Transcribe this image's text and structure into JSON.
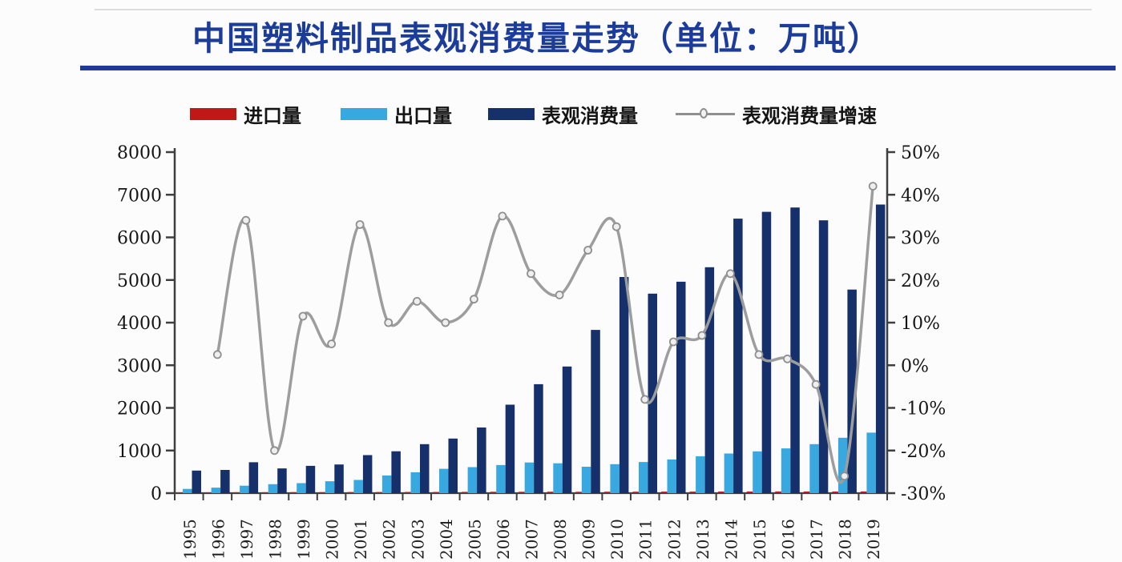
{
  "title": {
    "text": "中国塑料制品表观消费量走势（单位：万吨）",
    "color": "#1c3c9c",
    "underline_color": "#1c3a96"
  },
  "legend": [
    {
      "label": "进口量",
      "color": "#c01818",
      "marker": "bar-swatch"
    },
    {
      "label": "出口量",
      "color": "#38a9e0",
      "marker": "bar-swatch"
    },
    {
      "label": "表观消费量",
      "color": "#15306b",
      "marker": "bar-swatch"
    },
    {
      "label": "表观消费量增速",
      "color": "#8f8f8f",
      "marker": "line-circle"
    }
  ],
  "chart_data": {
    "type": "bar",
    "subtype": "grouped-bars-with-growth-line",
    "title": "中国塑料制品表观消费量走势（单位：万吨）",
    "categories": [
      "1995",
      "1996",
      "1997",
      "1998",
      "1999",
      "2000",
      "2001",
      "2002",
      "2003",
      "2004",
      "2005",
      "2006",
      "2007",
      "2008",
      "2009",
      "2010",
      "2011",
      "2012",
      "2013",
      "2014",
      "2015",
      "2016",
      "2017",
      "2018",
      "2019"
    ],
    "series": [
      {
        "name": "进口量",
        "type": "bar",
        "axis": "left",
        "color": "#c01818",
        "values": [
          20,
          21,
          22,
          23,
          24,
          25,
          26,
          27,
          28,
          29,
          30,
          31,
          32,
          33,
          32,
          33,
          34,
          35,
          36,
          37,
          38,
          39,
          40,
          38,
          40
        ]
      },
      {
        "name": "出口量",
        "type": "bar",
        "axis": "left",
        "color": "#38a9e0",
        "values": [
          100,
          130,
          175,
          210,
          235,
          280,
          310,
          415,
          490,
          570,
          610,
          660,
          720,
          700,
          620,
          680,
          730,
          790,
          865,
          930,
          980,
          1050,
          1150,
          1300,
          1420
        ]
      },
      {
        "name": "表观消费量",
        "type": "bar",
        "axis": "left",
        "color": "#15306b",
        "values": [
          530,
          545,
          725,
          580,
          640,
          672,
          892,
          982,
          1150,
          1280,
          1540,
          2075,
          2555,
          2970,
          3830,
          5070,
          4680,
          4960,
          5300,
          6440,
          6600,
          6700,
          6400,
          4775,
          6770
        ]
      },
      {
        "name": "表观消费量增速",
        "type": "line",
        "axis": "right",
        "color": "#9d9d9d",
        "marker_fill": "#efefef",
        "values_pct": [
          null,
          2.5,
          34,
          -20,
          11.5,
          5,
          33,
          10,
          15,
          10,
          15.5,
          35,
          21.5,
          16.5,
          27,
          32.5,
          -8,
          5.5,
          7,
          21.5,
          2.5,
          1.5,
          -4.5,
          -26,
          42
        ]
      }
    ],
    "left_axis": {
      "min": 0,
      "max": 8000,
      "step": 1000,
      "ticks": [
        "0",
        "1000",
        "2000",
        "3000",
        "4000",
        "5000",
        "6000",
        "7000",
        "8000"
      ]
    },
    "right_axis": {
      "min": -30,
      "max": 50,
      "step": 10,
      "ticks": [
        "-30%",
        "-20%",
        "-10%",
        "0%",
        "10%",
        "20%",
        "30%",
        "40%",
        "50%"
      ]
    },
    "grid": false,
    "legend_position": "top"
  }
}
